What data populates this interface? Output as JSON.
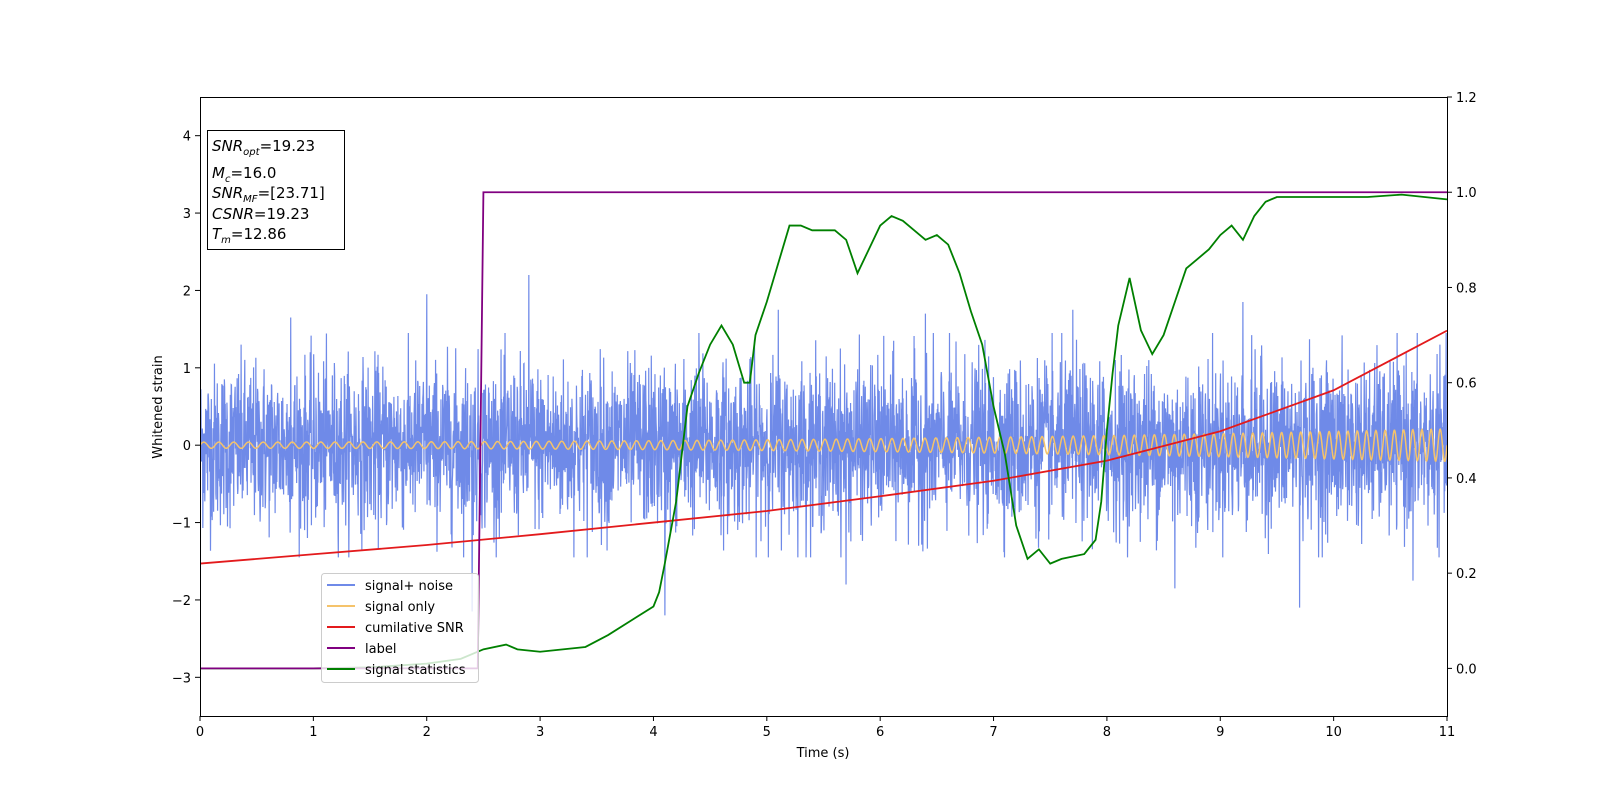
{
  "chart_data": {
    "type": "line",
    "xlabel": "Time (s)",
    "ylabel": "Whitened strain",
    "xlim": [
      0,
      11
    ],
    "ylim_left": [
      -3.5,
      4.5
    ],
    "ylim_right": [
      -0.1,
      1.2
    ],
    "x_ticks": [
      "0",
      "1",
      "2",
      "3",
      "4",
      "5",
      "6",
      "7",
      "8",
      "9",
      "10",
      "11"
    ],
    "y_ticks_left": [
      "−3",
      "−2",
      "−1",
      "0",
      "1",
      "2",
      "3",
      "4"
    ],
    "y_ticks_right": [
      "0.0",
      "0.2",
      "0.4",
      "0.6",
      "0.8",
      "1.0",
      "1.2"
    ],
    "grid": false,
    "legend_position": "lower-left",
    "info_box": {
      "snr_opt": {
        "base": "SNR",
        "sub": "opt",
        "value": "=19.23"
      },
      "mc": {
        "base": "M",
        "sub": "c",
        "value": "=16.0"
      },
      "snr_mf": {
        "base": "SNR",
        "sub": "MF",
        "value": "=[23.71]"
      },
      "csnr": {
        "base": "CSNR",
        "sub": "",
        "value": "=19.23"
      },
      "tm": {
        "base": "T",
        "sub": "m",
        "value": "=12.86"
      }
    },
    "series": [
      {
        "name": "signal+ noise",
        "axis": "left",
        "color": "#6f8ae8",
        "description_values": {
          "mean": 0,
          "typical_amplitude": 0.9,
          "spikes": [
            [
              0.8,
              1.65
            ],
            [
              2.0,
              1.95
            ],
            [
              2.4,
              -2.15
            ],
            [
              2.9,
              2.2
            ],
            [
              4.1,
              -2.2
            ],
            [
              4.4,
              1.45
            ],
            [
              5.1,
              1.75
            ],
            [
              5.7,
              -1.8
            ],
            [
              6.4,
              1.7
            ],
            [
              7.7,
              1.75
            ],
            [
              8.6,
              -1.85
            ],
            [
              9.2,
              1.85
            ],
            [
              9.7,
              -2.1
            ],
            [
              10.7,
              -1.75
            ]
          ]
        }
      },
      {
        "name": "signal only",
        "axis": "left",
        "color": "#f5c36b",
        "chirp": {
          "amp_start": 0.04,
          "amp_end": 0.21,
          "cycles": 110
        }
      },
      {
        "name": "cumilative SNR",
        "axis": "left",
        "color": "#e31a1c",
        "x": [
          0,
          1,
          2,
          3,
          4,
          5,
          6,
          7,
          8,
          9,
          10,
          11
        ],
        "y": [
          -1.53,
          -1.41,
          -1.29,
          -1.15,
          -1.0,
          -0.85,
          -0.66,
          -0.46,
          -0.2,
          0.18,
          0.71,
          1.48
        ]
      },
      {
        "name": "label",
        "axis": "right",
        "color": "#800080",
        "x": [
          0,
          2.45,
          2.5,
          11
        ],
        "y": [
          0.0,
          0.0,
          1.0,
          1.0
        ]
      },
      {
        "name": "signal statistics",
        "axis": "right",
        "color": "#008000",
        "x": [
          0,
          0.5,
          1.0,
          1.5,
          2.0,
          2.3,
          2.5,
          2.7,
          2.8,
          3.0,
          3.2,
          3.4,
          3.6,
          3.8,
          4.0,
          4.05,
          4.1,
          4.2,
          4.3,
          4.4,
          4.5,
          4.6,
          4.7,
          4.8,
          4.85,
          4.9,
          5.0,
          5.1,
          5.2,
          5.3,
          5.4,
          5.6,
          5.7,
          5.8,
          5.9,
          6.0,
          6.1,
          6.2,
          6.3,
          6.4,
          6.5,
          6.6,
          6.7,
          6.8,
          6.9,
          7.0,
          7.1,
          7.2,
          7.3,
          7.4,
          7.5,
          7.6,
          7.8,
          7.9,
          7.95,
          8.0,
          8.05,
          8.1,
          8.2,
          8.3,
          8.4,
          8.5,
          8.6,
          8.7,
          8.8,
          8.9,
          9.0,
          9.1,
          9.2,
          9.3,
          9.4,
          9.5,
          9.7,
          10.0,
          10.3,
          10.6,
          10.8,
          11.0
        ],
        "y": [
          0.0,
          0.0,
          0.0,
          0.002,
          0.01,
          0.02,
          0.04,
          0.05,
          0.04,
          0.035,
          0.04,
          0.045,
          0.07,
          0.1,
          0.13,
          0.16,
          0.22,
          0.35,
          0.55,
          0.62,
          0.68,
          0.72,
          0.68,
          0.6,
          0.6,
          0.7,
          0.77,
          0.85,
          0.93,
          0.93,
          0.92,
          0.92,
          0.9,
          0.83,
          0.88,
          0.93,
          0.95,
          0.94,
          0.92,
          0.9,
          0.91,
          0.89,
          0.83,
          0.75,
          0.68,
          0.55,
          0.45,
          0.3,
          0.23,
          0.25,
          0.22,
          0.23,
          0.24,
          0.27,
          0.35,
          0.5,
          0.62,
          0.72,
          0.82,
          0.71,
          0.66,
          0.7,
          0.77,
          0.84,
          0.86,
          0.88,
          0.91,
          0.93,
          0.9,
          0.95,
          0.98,
          0.99,
          0.99,
          0.99,
          0.99,
          0.995,
          0.99,
          0.985
        ]
      }
    ]
  }
}
